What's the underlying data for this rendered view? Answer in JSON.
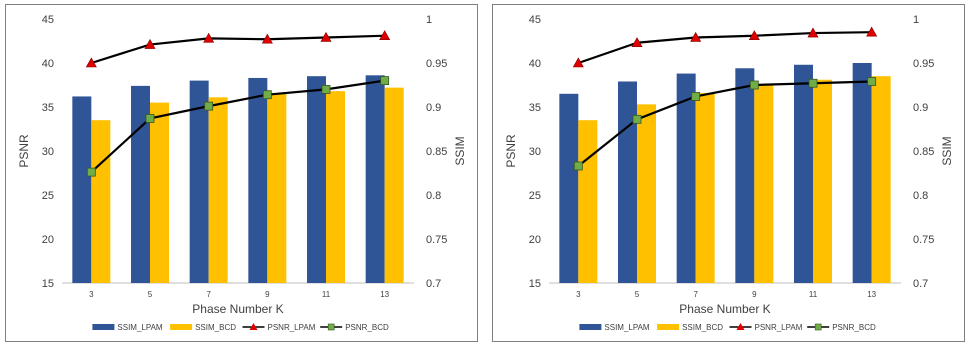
{
  "chart_data": [
    {
      "type": "bar",
      "categories": [
        "3",
        "5",
        "7",
        "9",
        "11",
        "13"
      ],
      "xlabel": "Phase Number K",
      "ylabel": "PSNR",
      "y2label": "SSIM",
      "ylim": [
        15,
        45
      ],
      "yticks": [
        "15",
        "20",
        "25",
        "30",
        "35",
        "40",
        "45"
      ],
      "y2lim": [
        0.7,
        1.0
      ],
      "y2ticks": [
        "0.7",
        "0.75",
        "0.8",
        "0.85",
        "0.9",
        "0.95",
        "1"
      ],
      "grid": false,
      "legend_position": "bottom",
      "series": [
        {
          "name": "SSIM_LPAM",
          "kind": "bar",
          "axis": "right",
          "color": "#2f5597",
          "values": [
            0.912,
            0.924,
            0.93,
            0.933,
            0.935,
            0.936
          ]
        },
        {
          "name": "SSIM_BCD",
          "kind": "bar",
          "axis": "right",
          "color": "#ffc000",
          "values": [
            0.885,
            0.905,
            0.911,
            0.915,
            0.918,
            0.922
          ]
        },
        {
          "name": "PSNR_LPAM",
          "kind": "line",
          "axis": "left",
          "color": "#000000",
          "marker": "triangle",
          "marker_color": "#e00000",
          "values": [
            40.0,
            42.1,
            42.8,
            42.7,
            42.9,
            43.1
          ]
        },
        {
          "name": "PSNR_BCD",
          "kind": "line",
          "axis": "left",
          "color": "#000000",
          "marker": "square",
          "marker_color": "#70ad47",
          "values": [
            27.6,
            33.7,
            35.1,
            36.4,
            37.0,
            38.0
          ]
        }
      ]
    },
    {
      "type": "bar",
      "categories": [
        "3",
        "5",
        "7",
        "9",
        "11",
        "13"
      ],
      "xlabel": "Phase Number K",
      "ylabel": "PSNR",
      "y2label": "SSIM",
      "ylim": [
        15,
        45
      ],
      "yticks": [
        "15",
        "20",
        "25",
        "30",
        "35",
        "40",
        "45"
      ],
      "y2lim": [
        0.7,
        1.0
      ],
      "y2ticks": [
        "0.7",
        "0.75",
        "0.8",
        "0.85",
        "0.9",
        "0.95",
        "1"
      ],
      "grid": false,
      "legend_position": "bottom",
      "series": [
        {
          "name": "SSIM_LPAM",
          "kind": "bar",
          "axis": "right",
          "color": "#2f5597",
          "values": [
            0.915,
            0.929,
            0.938,
            0.944,
            0.948,
            0.95
          ]
        },
        {
          "name": "SSIM_BCD",
          "kind": "bar",
          "axis": "right",
          "color": "#ffc000",
          "values": [
            0.885,
            0.903,
            0.916,
            0.925,
            0.931,
            0.935
          ]
        },
        {
          "name": "PSNR_LPAM",
          "kind": "line",
          "axis": "left",
          "color": "#000000",
          "marker": "triangle",
          "marker_color": "#e00000",
          "values": [
            40.0,
            42.3,
            42.9,
            43.1,
            43.4,
            43.5
          ]
        },
        {
          "name": "PSNR_BCD",
          "kind": "line",
          "axis": "left",
          "color": "#000000",
          "marker": "square",
          "marker_color": "#70ad47",
          "values": [
            28.3,
            33.6,
            36.2,
            37.5,
            37.7,
            37.9
          ]
        }
      ]
    }
  ]
}
